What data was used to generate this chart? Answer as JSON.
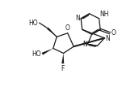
{
  "bg_color": "#ffffff",
  "line_color": "#1a1a1a",
  "lw": 0.9,
  "fs": 5.5,
  "xlim": [
    0,
    10
  ],
  "ylim": [
    0,
    7
  ]
}
